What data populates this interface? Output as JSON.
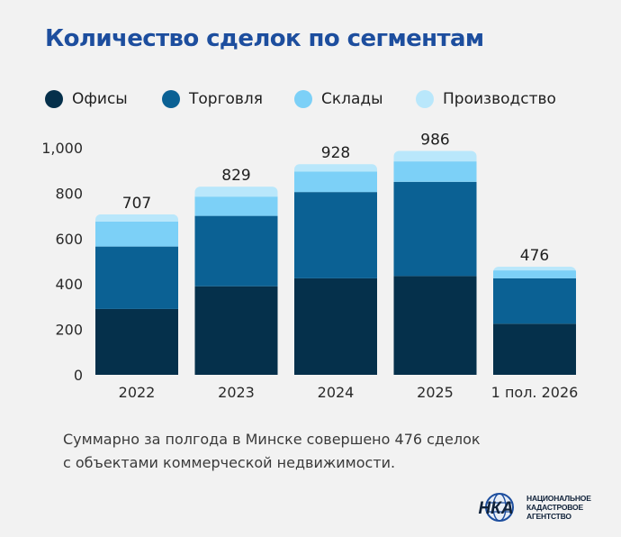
{
  "title": "Количество сделок по сегментам",
  "footnote": {
    "line1": "Суммарно за полгода в Минске совершено 476 сделок",
    "line2": "с объектами коммерческой недвижимости."
  },
  "logo": {
    "mark_text": "НКА",
    "line1": "НАЦИОНАЛЬНОЕ",
    "line2": "КАДАСТРОВОЕ",
    "line3": "АГЕНТСТВО"
  },
  "chart_data": {
    "type": "bar",
    "stacked": true,
    "categories": [
      "2022",
      "2023",
      "2024",
      "2025",
      "1 пол. 2026"
    ],
    "series": [
      {
        "name": "Офисы",
        "color": "#05304b",
        "values": [
          290,
          390,
          425,
          435,
          225
        ]
      },
      {
        "name": "Торговля",
        "color": "#0b6194",
        "values": [
          275,
          310,
          380,
          415,
          200
        ]
      },
      {
        "name": "Склады",
        "color": "#7cd0f7",
        "values": [
          110,
          85,
          90,
          90,
          35
        ]
      },
      {
        "name": "Производство",
        "color": "#b9e7fb",
        "values": [
          32,
          44,
          33,
          46,
          16
        ]
      }
    ],
    "totals": [
      707,
      829,
      928,
      986,
      476
    ],
    "total_labels": [
      "707",
      "829",
      "928",
      "986",
      "476"
    ],
    "y_ticks": [
      0,
      200,
      400,
      600,
      800,
      1000
    ],
    "y_tick_labels": [
      "0",
      "200",
      "400",
      "600",
      "800",
      "1,000"
    ],
    "ylim": [
      0,
      1000
    ],
    "xlabel": "",
    "ylabel": "",
    "grid": false,
    "legend_position": "top"
  }
}
